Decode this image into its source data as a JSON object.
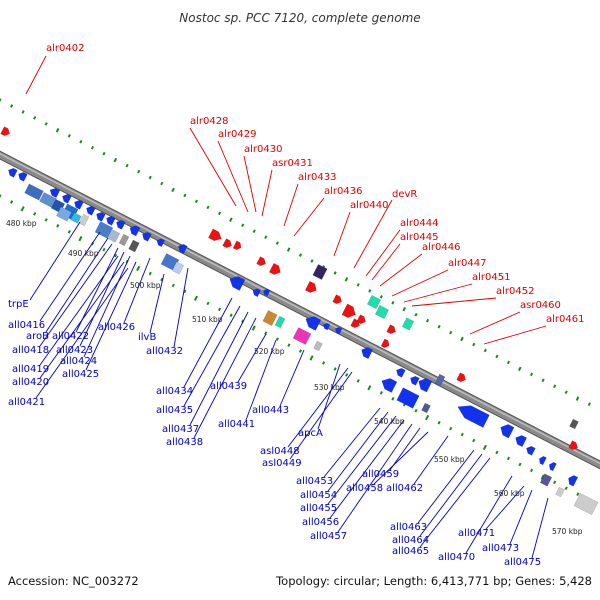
{
  "title": "Nostoc sp. PCC 7120, complete genome",
  "footer": {
    "accession": "Accession: NC_003272",
    "summary": "Topology: circular; Length: 6,413,771 bp; Genes: 5,428"
  },
  "colors": {
    "forward_label": "#dd0000",
    "reverse_label": "#0000bb",
    "forward_gene": "#ee1111",
    "reverse_gene": "#1133ee",
    "backbone": "#808080",
    "tick": "#1a8a1a"
  },
  "scale_labels": [
    "480 kbp",
    "490 kbp",
    "500 kbp",
    "510 kbp",
    "520 kbp",
    "530 kbp",
    "540 kbp",
    "550 kbp",
    "560 kbp",
    "570 kbp"
  ],
  "forward_labels": [
    "alr0402",
    "alr0428",
    "alr0429",
    "alr0430",
    "asr0431",
    "alr0433",
    "alr0436",
    "alr0440",
    "devR",
    "alr0444",
    "alr0445",
    "alr0446",
    "alr0447",
    "alr0451",
    "alr0452",
    "asr0460",
    "alr0461"
  ],
  "reverse_labels": [
    "trpE",
    "all0416",
    "aroB",
    "all0418",
    "all0422",
    "all0423",
    "all0419",
    "all0424",
    "all0420",
    "all0425",
    "all0421",
    "all0426",
    "ilvB",
    "all0432",
    "all0434",
    "all0439",
    "all0435",
    "all0437",
    "all0438",
    "all0441",
    "all0443",
    "apcA",
    "asl0448",
    "asl0449",
    "all0453",
    "all0454",
    "all0455",
    "all0456",
    "all0457",
    "all0459",
    "all0458",
    "all0462",
    "all0463",
    "all0464",
    "all0465",
    "all0470",
    "all0471",
    "all0473",
    "all0475"
  ]
}
